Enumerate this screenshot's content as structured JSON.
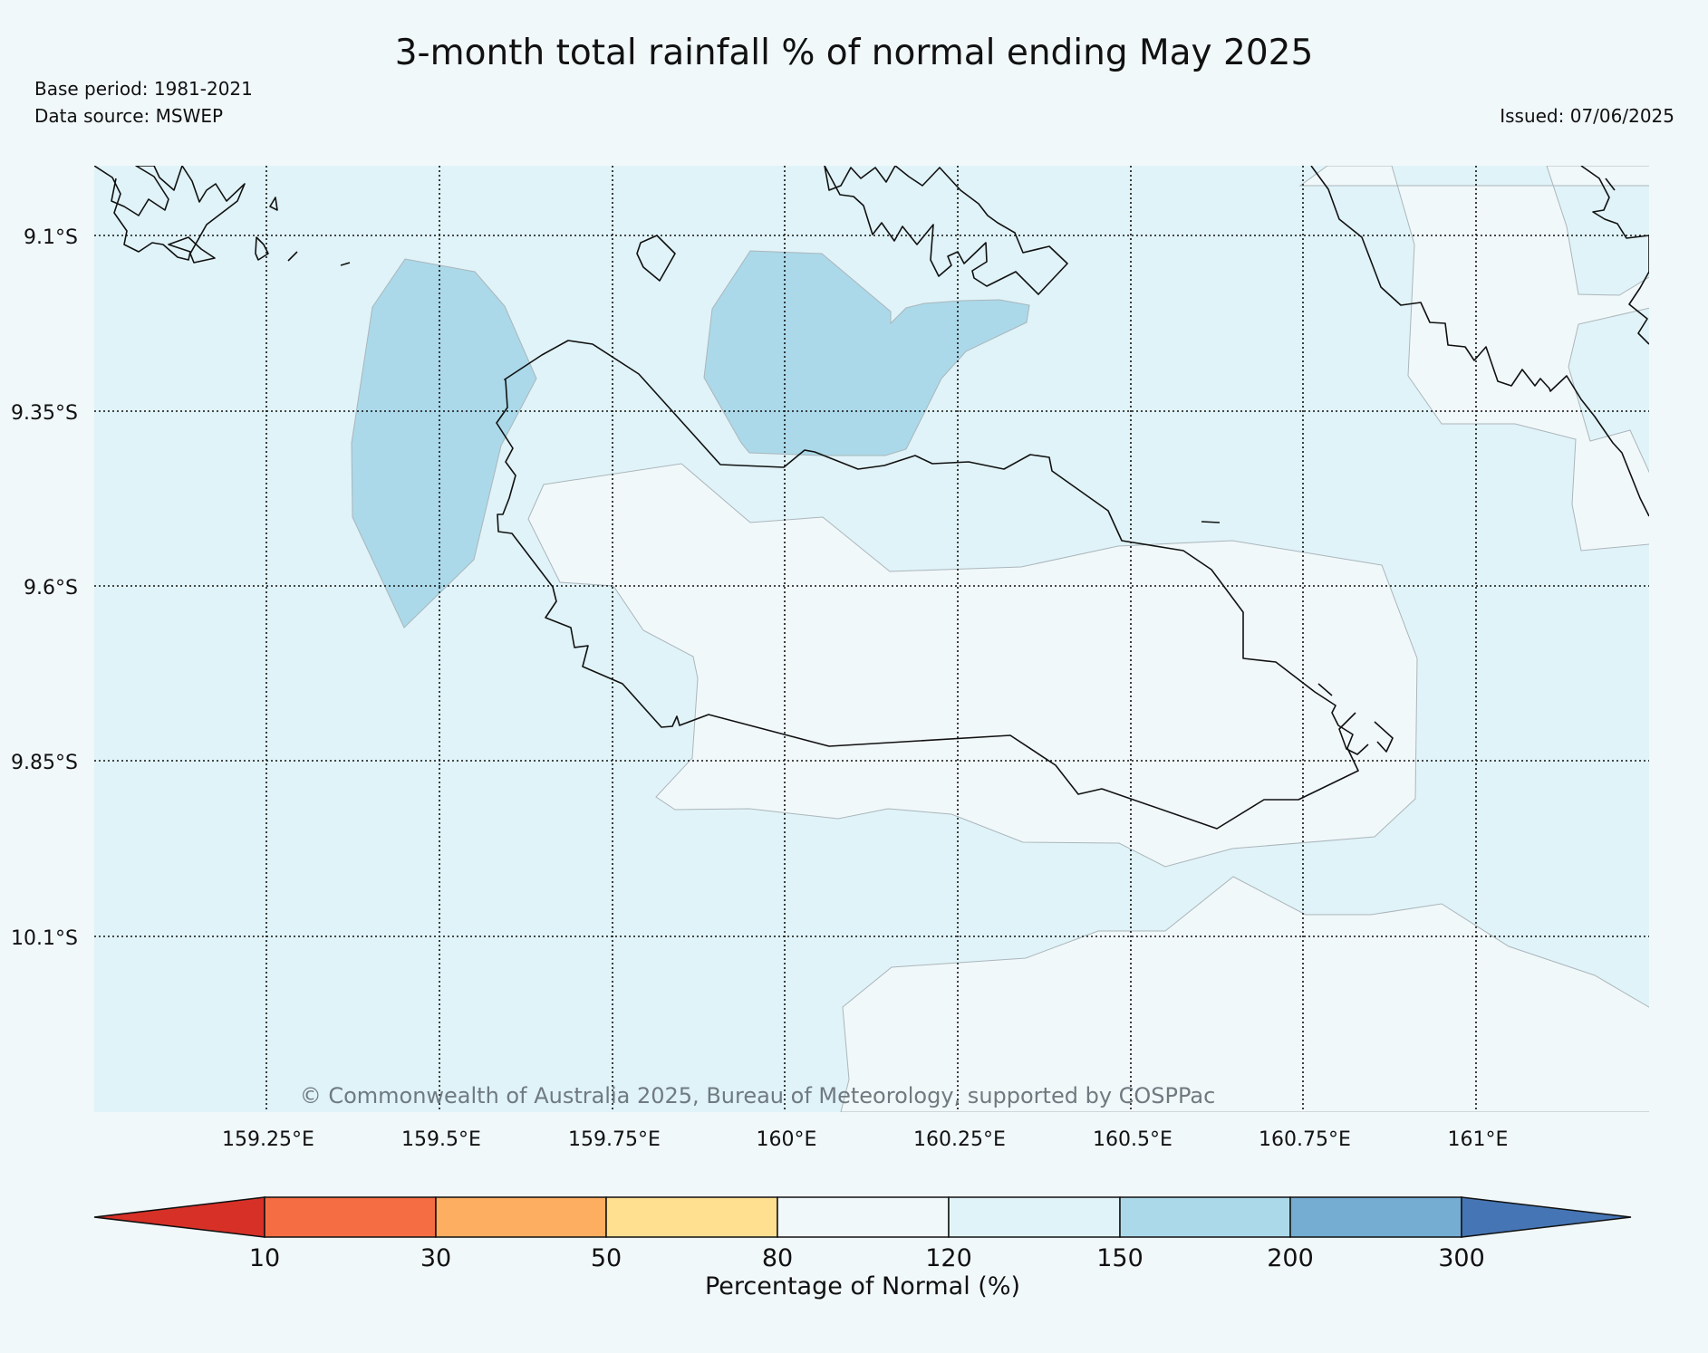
{
  "title": "3-month total rainfall % of normal ending May 2025",
  "base_period": "Base period: 1981-2021",
  "data_source": "Data source: MSWEP",
  "issued": "Issued: 07/06/2025",
  "copyright": "© Commonwealth of Australia 2025, Bureau of Meteorology, supported by COSPPac",
  "map": {
    "lat_labels": [
      "9.1°S",
      "9.35°S",
      "9.6°S",
      "9.85°S",
      "10.1°S"
    ],
    "lon_labels": [
      "159.25°E",
      "159.5°E",
      "159.75°E",
      "160°E",
      "160.25°E",
      "160.5°E",
      "160.75°E",
      "161°E"
    ],
    "lat_values": [
      -9.1,
      -9.35,
      -9.6,
      -9.85,
      -10.1
    ],
    "lon_values": [
      159.25,
      159.5,
      159.75,
      160.0,
      160.25,
      160.5,
      160.75,
      161.0
    ]
  },
  "colorbar": {
    "title": "Percentage of Normal (%)",
    "boundaries": [
      "10",
      "30",
      "50",
      "80",
      "120",
      "150",
      "200",
      "300"
    ],
    "colors": [
      "#d73027",
      "#f46d43",
      "#fdae61",
      "#fee090",
      "#f1f8fa",
      "#e0f3f8",
      "#abd9e9",
      "#74add1",
      "#4575b4"
    ]
  },
  "colors": {
    "background": "#f1f8fa",
    "band_80_120": "#f1f8fa",
    "band_120_150": "#e0f3f8",
    "band_150_200": "#abd9e9"
  }
}
